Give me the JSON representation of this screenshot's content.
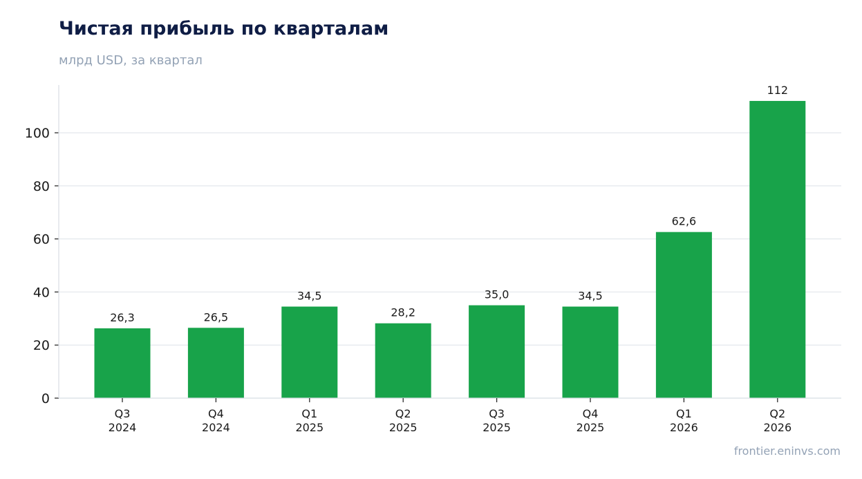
{
  "chart_data": {
    "type": "bar",
    "title": "Чистая прибыль по кварталам",
    "subtitle": "млрд USD, за квартал",
    "xlabel": "",
    "ylabel": "",
    "categories": [
      [
        "Q3",
        "2024"
      ],
      [
        "Q4",
        "2024"
      ],
      [
        "Q1",
        "2025"
      ],
      [
        "Q2",
        "2025"
      ],
      [
        "Q3",
        "2025"
      ],
      [
        "Q4",
        "2025"
      ],
      [
        "Q1",
        "2026"
      ],
      [
        "Q2",
        "2026"
      ]
    ],
    "values": [
      26.3,
      26.5,
      34.5,
      28.2,
      35.0,
      34.5,
      62.6,
      112
    ],
    "data_labels": [
      "26,3",
      "26,5",
      "34,5",
      "28,2",
      "35,0",
      "34,5",
      "62,6",
      "112"
    ],
    "yticks": [
      0,
      20,
      40,
      60,
      80,
      100
    ],
    "ylim": [
      0,
      118
    ],
    "grid": true,
    "bar_color": "#18a34a"
  },
  "source": "frontier.eninvs.com"
}
